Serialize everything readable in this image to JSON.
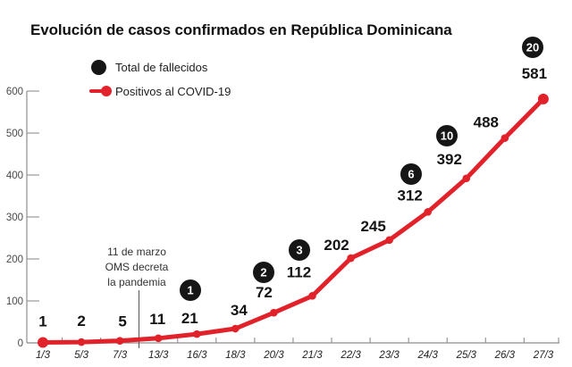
{
  "colors": {
    "positives": "#e2222a",
    "deaths": "#161616",
    "axis": "#8f8f8f",
    "background": "#ffffff"
  },
  "chart_data": {
    "type": "line",
    "title": "Evolución de casos confirmados en República Dominicana",
    "x": [
      "1/3",
      "5/3",
      "7/3",
      "13/3",
      "16/3",
      "18/3",
      "20/3",
      "21/3",
      "22/3",
      "23/3",
      "24/3",
      "25/3",
      "26/3",
      "27/3"
    ],
    "series": [
      {
        "name": "Positivos al COVID-19",
        "color": "#e2222a",
        "marker": "circle",
        "values": [
          1,
          2,
          5,
          11,
          21,
          34,
          72,
          112,
          202,
          245,
          312,
          392,
          488,
          581
        ]
      },
      {
        "name": "Total de fallecidos",
        "color": "#161616",
        "marker": "badge",
        "values": [
          null,
          null,
          null,
          null,
          1,
          null,
          2,
          3,
          null,
          null,
          6,
          10,
          null,
          20
        ]
      }
    ],
    "xlabel": "",
    "ylabel": "",
    "ylim": [
      0,
      600
    ],
    "yticks": [
      0,
      100,
      200,
      300,
      400,
      500,
      600
    ],
    "grid": false,
    "legend_position": "top-left",
    "annotation": {
      "lines": [
        "11 de marzo",
        "OMS decreta",
        "la pandemia"
      ],
      "between": [
        "7/3",
        "13/3"
      ]
    }
  }
}
